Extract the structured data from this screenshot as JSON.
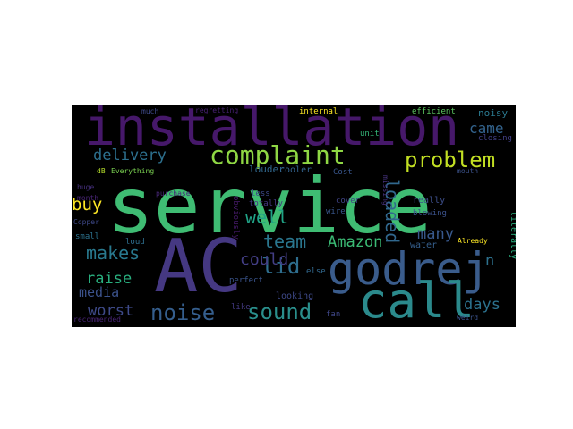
{
  "wordcloud": {
    "background": "#000000",
    "words": [
      {
        "text": "service",
        "color": "#3fbc73"
      },
      {
        "text": "installation",
        "color": "#46186a"
      },
      {
        "text": "AC",
        "color": "#453882"
      },
      {
        "text": "godrej",
        "color": "#3a5c8c"
      },
      {
        "text": "call",
        "color": "#2b8a8c"
      },
      {
        "text": "complaint",
        "color": "#8fd744"
      },
      {
        "text": "problem",
        "color": "#c2df23"
      },
      {
        "text": "noise",
        "color": "#355e8d"
      },
      {
        "text": "sound",
        "color": "#2a8f8c"
      },
      {
        "text": "makes",
        "color": "#29798e"
      },
      {
        "text": "lid",
        "color": "#2e6e8e"
      },
      {
        "text": "team",
        "color": "#2a768e"
      },
      {
        "text": "Amazon",
        "color": "#3bbb75"
      },
      {
        "text": "delivery",
        "color": "#2d708e"
      },
      {
        "text": "loaded",
        "color": "#31688e"
      },
      {
        "text": "came",
        "color": "#33638d"
      },
      {
        "text": "buy",
        "color": "#fde725"
      },
      {
        "text": "well",
        "color": "#20a386"
      },
      {
        "text": "could",
        "color": "#433e85"
      },
      {
        "text": "many",
        "color": "#38588c"
      },
      {
        "text": "raise",
        "color": "#29af7f"
      },
      {
        "text": "media",
        "color": "#3b528b"
      },
      {
        "text": "worst",
        "color": "#3e4a89"
      },
      {
        "text": "days",
        "color": "#2c728e"
      },
      {
        "text": "n",
        "color": "#2d718e"
      },
      {
        "text": "noisy",
        "color": "#2a788e"
      },
      {
        "text": "closing",
        "color": "#424086"
      },
      {
        "text": "internal",
        "color": "#fde725"
      },
      {
        "text": "efficient",
        "color": "#5ec962"
      },
      {
        "text": "much",
        "color": "#3e4989"
      },
      {
        "text": "regretting",
        "color": "#482173"
      },
      {
        "text": "unit",
        "color": "#35b779"
      },
      {
        "text": "louder",
        "color": "#31688e"
      },
      {
        "text": "Everything",
        "color": "#7ad151"
      },
      {
        "text": "dB",
        "color": "#b5de2b"
      },
      {
        "text": "cooler",
        "color": "#33638d"
      },
      {
        "text": "Cost",
        "color": "#39568c"
      },
      {
        "text": "mouth",
        "color": "#3b528b"
      },
      {
        "text": "missing",
        "color": "#46337e"
      },
      {
        "text": "obviously",
        "color": "#481b6d"
      },
      {
        "text": "purchase",
        "color": "#482878"
      },
      {
        "text": "less",
        "color": "#3e4a89"
      },
      {
        "text": "totally",
        "color": "#453882"
      },
      {
        "text": "really",
        "color": "#3d4e8a"
      },
      {
        "text": "blowing",
        "color": "#3b528b"
      },
      {
        "text": "water",
        "color": "#355f8d"
      },
      {
        "text": "huge",
        "color": "#46307e"
      },
      {
        "text": "month",
        "color": "#482475"
      },
      {
        "text": "Copper",
        "color": "#3e4989"
      },
      {
        "text": "small",
        "color": "#2c728e"
      },
      {
        "text": "loud",
        "color": "#2e6e8e"
      },
      {
        "text": "else",
        "color": "#31688e"
      },
      {
        "text": "cover",
        "color": "#414487"
      },
      {
        "text": "wire",
        "color": "#39568c"
      },
      {
        "text": "literally",
        "color": "#29af7f"
      },
      {
        "text": "Already",
        "color": "#fde725"
      },
      {
        "text": "perfect",
        "color": "#3a548c"
      },
      {
        "text": "looking",
        "color": "#3e4989"
      },
      {
        "text": "like",
        "color": "#443a83"
      },
      {
        "text": "fan",
        "color": "#3f4788"
      },
      {
        "text": "recommended",
        "color": "#482475"
      },
      {
        "text": "weird",
        "color": "#3b528b"
      }
    ]
  }
}
